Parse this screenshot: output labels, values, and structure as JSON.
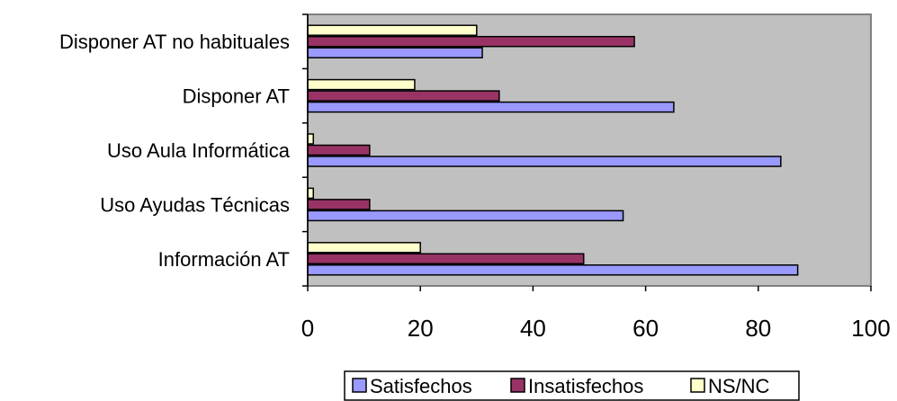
{
  "chart_data": {
    "type": "bar",
    "orientation": "horizontal",
    "categories": [
      "Disponer AT no habituales",
      "Disponer AT",
      "Uso Aula Informática",
      "Uso Ayudas Técnicas",
      "Información AT"
    ],
    "series": [
      {
        "name": "Satisfechos",
        "color": "#9999ff",
        "values": [
          31,
          65,
          84,
          56,
          87
        ]
      },
      {
        "name": "Insatisfechos",
        "color": "#993366",
        "values": [
          58,
          34,
          11,
          11,
          49
        ]
      },
      {
        "name": "NS/NC",
        "color": "#ffffcc",
        "values": [
          30,
          19,
          1,
          1,
          20
        ]
      }
    ],
    "xlim": [
      0,
      100
    ],
    "xticks": [
      0,
      20,
      40,
      60,
      80,
      100
    ],
    "title": "",
    "xlabel": "",
    "ylabel": "",
    "plot_background": "#c0c0c0",
    "legend_position": "bottom"
  }
}
